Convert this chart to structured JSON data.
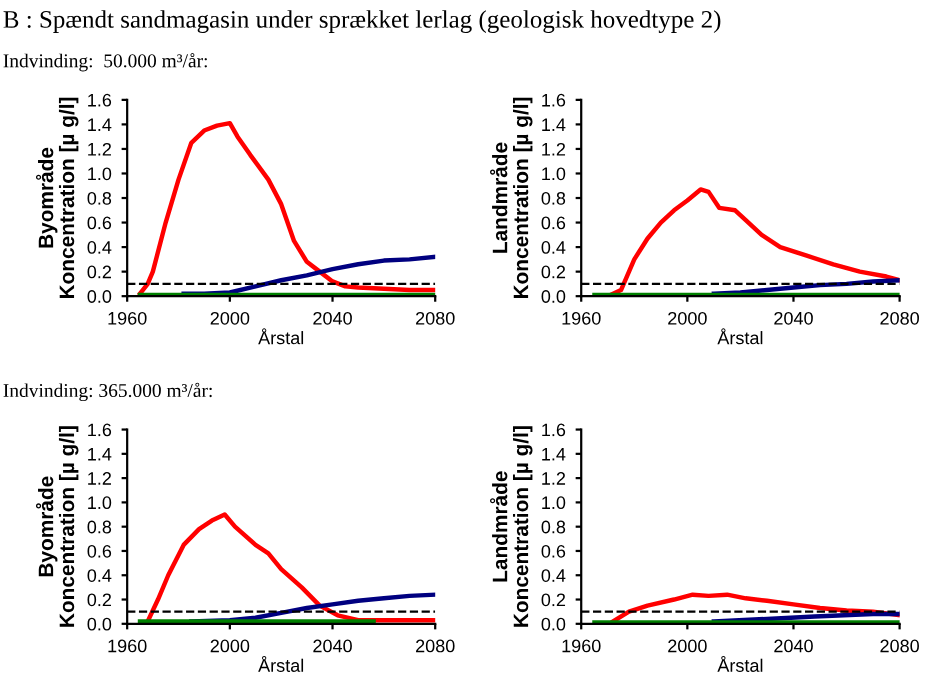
{
  "chart_data": [
    {
      "type": "line",
      "title": "B : Spændt sandmagasin under sprækket lerlag (geologisk hovedtype 2)",
      "subtitle": "Indvinding:  50.000 m³/år:",
      "xlabel": "Årstal",
      "ylabel": "Byområde\nKoncentration [µ g/l]",
      "xlim": [
        1960,
        2080
      ],
      "xticks": [
        1960,
        2000,
        2040,
        2080
      ],
      "ylim": [
        0,
        1.6
      ],
      "yticks": [
        {
          "value": 0,
          "label": "0.0"
        },
        {
          "value": 0.2,
          "label": "0.2"
        },
        {
          "value": 0.4,
          "label": "0.4"
        },
        {
          "value": 0.6,
          "label": "0.6"
        },
        {
          "value": 0.8,
          "label": "0.8"
        },
        {
          "value": 1.0,
          "label": "1.0"
        },
        {
          "value": 1.2,
          "label": "1.2"
        },
        {
          "value": 1.4,
          "label": "1.4"
        },
        {
          "value": 1.6,
          "label": "1.6"
        }
      ],
      "grid": false,
      "marker": "none",
      "line_style": "solid",
      "ref_lines": [
        {
          "axis": "y",
          "value": 0.1,
          "color": "#000000",
          "line_style": "dashed"
        }
      ],
      "series": [
        {
          "color": "#ff0000",
          "x": [
            1965,
            1968,
            1970,
            1975,
            1980,
            1985,
            1990,
            1995,
            2000,
            2003,
            2008,
            2015,
            2020,
            2025,
            2030,
            2035,
            2040,
            2045,
            2050,
            2060,
            2070,
            2080
          ],
          "values": [
            0.02,
            0.1,
            0.2,
            0.6,
            0.95,
            1.25,
            1.35,
            1.39,
            1.41,
            1.3,
            1.15,
            0.95,
            0.75,
            0.45,
            0.28,
            0.2,
            0.12,
            0.08,
            0.07,
            0.06,
            0.05,
            0.05
          ]
        },
        {
          "color": "#000080",
          "x": [
            1982,
            1990,
            2000,
            2010,
            2020,
            2030,
            2040,
            2050,
            2060,
            2070,
            2080
          ],
          "values": [
            0.02,
            0.02,
            0.03,
            0.08,
            0.13,
            0.17,
            0.22,
            0.26,
            0.29,
            0.3,
            0.32
          ]
        },
        {
          "color": "#008000",
          "x": [
            1965,
            2080
          ],
          "values": [
            0.01,
            0.01
          ]
        }
      ]
    },
    {
      "type": "line",
      "xlabel": "Årstal",
      "ylabel": "Landmråde\nKoncentration [µ g/l]",
      "xlim": [
        1960,
        2080
      ],
      "xticks": [
        1960,
        2000,
        2040,
        2080
      ],
      "ylim": [
        0,
        1.6
      ],
      "yticks": [
        {
          "value": 0,
          "label": "0.0"
        },
        {
          "value": 0.2,
          "label": "0.2"
        },
        {
          "value": 0.4,
          "label": "0.4"
        },
        {
          "value": 0.6,
          "label": "0.6"
        },
        {
          "value": 0.8,
          "label": "0.8"
        },
        {
          "value": 1.0,
          "label": "1.0"
        },
        {
          "value": 1.2,
          "label": "1.2"
        },
        {
          "value": 1.4,
          "label": "1.4"
        },
        {
          "value": 1.6,
          "label": "1.6"
        }
      ],
      "grid": false,
      "marker": "none",
      "line_style": "solid",
      "ref_lines": [
        {
          "axis": "y",
          "value": 0.1,
          "color": "#000000",
          "line_style": "dashed"
        }
      ],
      "series": [
        {
          "color": "#ff0000",
          "x": [
            1970,
            1975,
            1980,
            1985,
            1990,
            1995,
            2000,
            2005,
            2008,
            2012,
            2018,
            2022,
            2028,
            2035,
            2045,
            2055,
            2065,
            2075,
            2080
          ],
          "values": [
            0.0,
            0.05,
            0.3,
            0.47,
            0.6,
            0.7,
            0.78,
            0.87,
            0.85,
            0.72,
            0.7,
            0.62,
            0.5,
            0.4,
            0.33,
            0.26,
            0.2,
            0.16,
            0.13
          ]
        },
        {
          "color": "#000080",
          "x": [
            2010,
            2020,
            2030,
            2040,
            2050,
            2060,
            2070,
            2080
          ],
          "values": [
            0.02,
            0.03,
            0.05,
            0.07,
            0.09,
            0.1,
            0.12,
            0.13
          ]
        },
        {
          "color": "#008000",
          "x": [
            1965,
            2080
          ],
          "values": [
            0.01,
            0.01
          ]
        }
      ]
    },
    {
      "type": "line",
      "subtitle": "Indvinding: 365.000 m³/år:",
      "xlabel": "Årstal",
      "ylabel": "Byområde\nKoncentration [µ g/l]",
      "xlim": [
        1960,
        2080
      ],
      "xticks": [
        1960,
        2000,
        2040,
        2080
      ],
      "ylim": [
        0,
        1.6
      ],
      "yticks": [
        {
          "value": 0,
          "label": "0.0"
        },
        {
          "value": 0.2,
          "label": "0.2"
        },
        {
          "value": 0.4,
          "label": "0.4"
        },
        {
          "value": 0.6,
          "label": "0.6"
        },
        {
          "value": 0.8,
          "label": "0.8"
        },
        {
          "value": 1.0,
          "label": "1.0"
        },
        {
          "value": 1.2,
          "label": "1.2"
        },
        {
          "value": 1.4,
          "label": "1.4"
        },
        {
          "value": 1.6,
          "label": "1.6"
        }
      ],
      "grid": false,
      "marker": "none",
      "line_style": "solid",
      "ref_lines": [
        {
          "axis": "y",
          "value": 0.1,
          "color": "#000000",
          "line_style": "dashed"
        }
      ],
      "series": [
        {
          "color": "#ff0000",
          "x": [
            1968,
            1972,
            1976,
            1982,
            1988,
            1993,
            1998,
            2002,
            2010,
            2015,
            2020,
            2028,
            2035,
            2042,
            2050,
            2080
          ],
          "values": [
            0.02,
            0.2,
            0.4,
            0.65,
            0.78,
            0.85,
            0.9,
            0.8,
            0.65,
            0.58,
            0.45,
            0.3,
            0.15,
            0.07,
            0.03,
            0.03
          ]
        },
        {
          "color": "#000080",
          "x": [
            1985,
            2000,
            2010,
            2020,
            2030,
            2040,
            2050,
            2060,
            2070,
            2080
          ],
          "values": [
            0.02,
            0.03,
            0.05,
            0.09,
            0.13,
            0.16,
            0.19,
            0.21,
            0.23,
            0.24
          ]
        },
        {
          "color": "#008000",
          "x": [
            1965,
            2056
          ],
          "values": [
            0.02,
            0.02
          ]
        }
      ]
    },
    {
      "type": "line",
      "xlabel": "Årstal",
      "ylabel": "Landmråde\nKoncentration [µ g/l]",
      "xlim": [
        1960,
        2080
      ],
      "xticks": [
        1960,
        2000,
        2040,
        2080
      ],
      "ylim": [
        0,
        1.6
      ],
      "yticks": [
        {
          "value": 0,
          "label": "0.0"
        },
        {
          "value": 0.2,
          "label": "0.2"
        },
        {
          "value": 0.4,
          "label": "0.4"
        },
        {
          "value": 0.6,
          "label": "0.6"
        },
        {
          "value": 0.8,
          "label": "0.8"
        },
        {
          "value": 1.0,
          "label": "1.0"
        },
        {
          "value": 1.2,
          "label": "1.2"
        },
        {
          "value": 1.4,
          "label": "1.4"
        },
        {
          "value": 1.6,
          "label": "1.6"
        }
      ],
      "grid": false,
      "marker": "none",
      "line_style": "solid",
      "ref_lines": [
        {
          "axis": "y",
          "value": 0.1,
          "color": "#000000",
          "line_style": "dashed"
        }
      ],
      "series": [
        {
          "color": "#ff0000",
          "x": [
            1972,
            1978,
            1985,
            1995,
            2002,
            2008,
            2015,
            2022,
            2030,
            2040,
            2050,
            2060,
            2070,
            2080
          ],
          "values": [
            0.02,
            0.1,
            0.15,
            0.2,
            0.24,
            0.23,
            0.24,
            0.21,
            0.19,
            0.16,
            0.13,
            0.11,
            0.1,
            0.07
          ]
        },
        {
          "color": "#000080",
          "x": [
            2010,
            2030,
            2048,
            2070,
            2080
          ],
          "values": [
            0.02,
            0.04,
            0.06,
            0.08,
            0.08
          ]
        },
        {
          "color": "#008000",
          "x": [
            1965,
            2080
          ],
          "values": [
            0.01,
            0.01
          ]
        }
      ]
    }
  ]
}
